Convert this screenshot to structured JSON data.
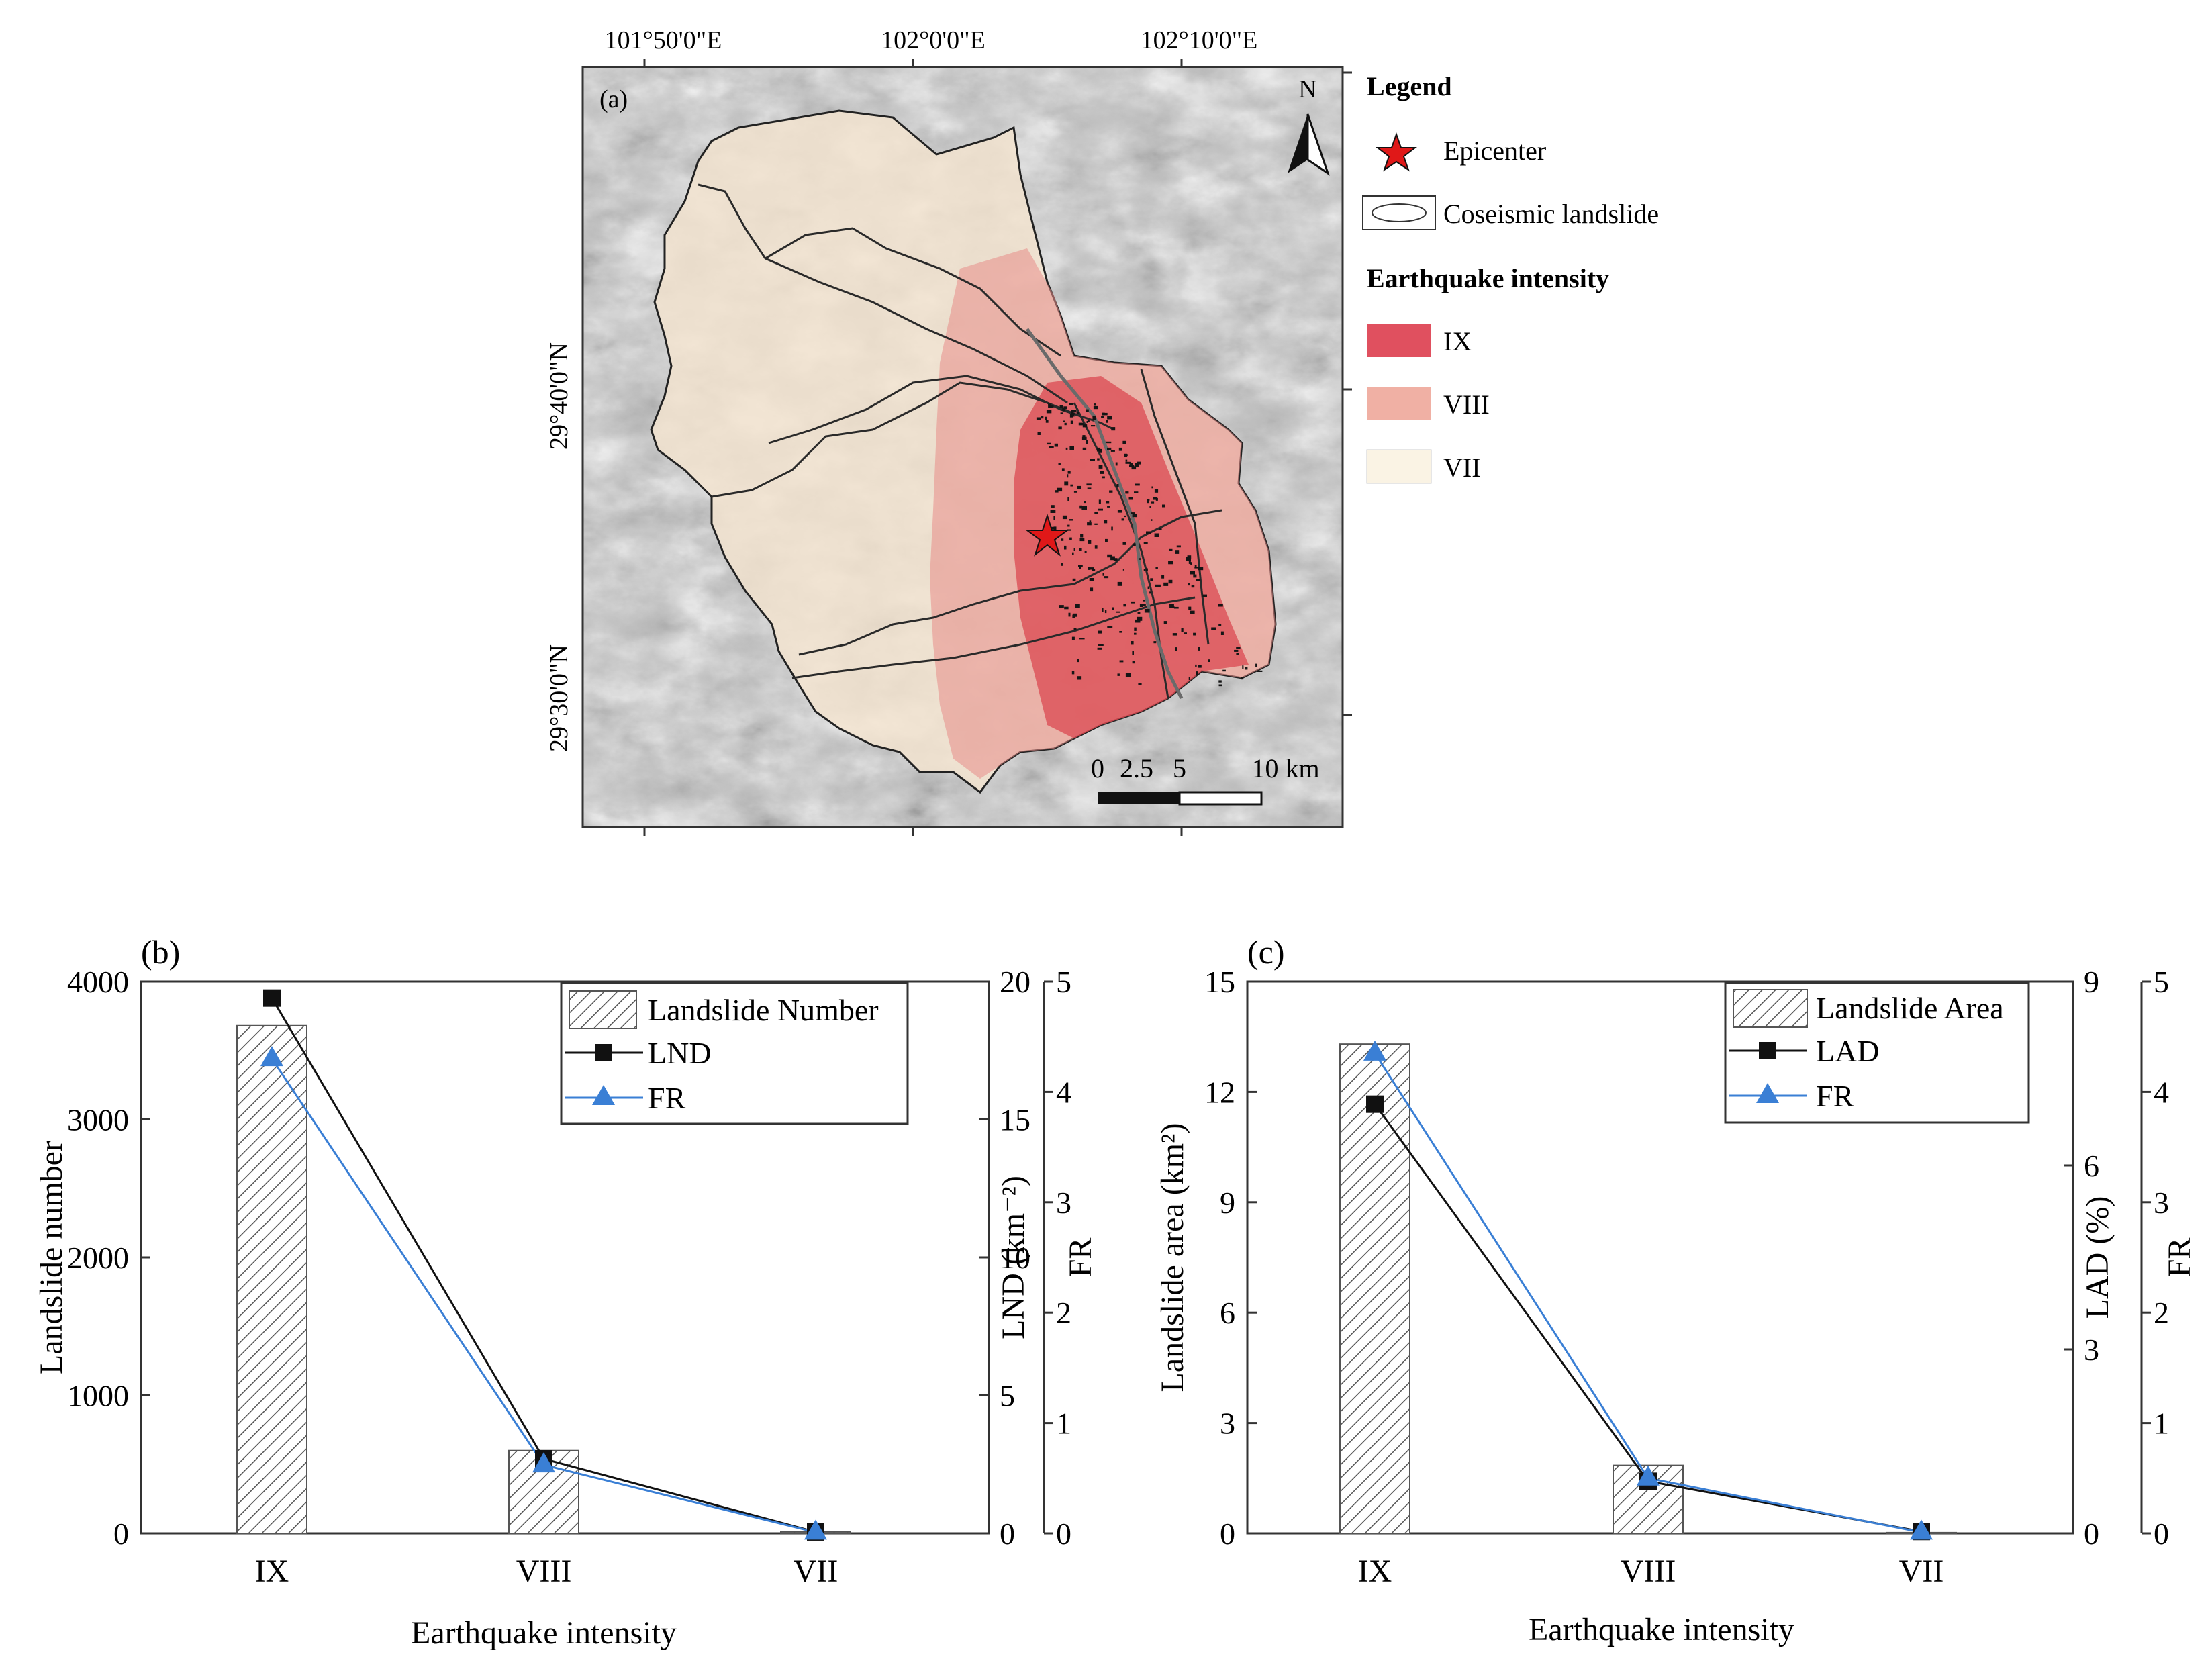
{
  "colors": {
    "intensity_IX": "#e0505f",
    "intensity_VIII": "#f0b0a4",
    "intensity_VII": "#faf3e4",
    "hillshade": "#b8b8b8",
    "bar_hatch": "#555555",
    "series_black": "#111111",
    "series_blue": "#3a7fd5",
    "epicenter": "#e01818"
  },
  "map": {
    "panel_label": "(a)",
    "lon_ticks": [
      "101°50'0\"E",
      "102°0'0\"E",
      "102°10'0\"E"
    ],
    "lat_ticks": [
      "29°40'0\"N",
      "29°30'0\"N"
    ],
    "north_label": "N",
    "scale_labels": [
      "0",
      "2.5",
      "5",
      "10 km"
    ],
    "legend": {
      "title": "Legend",
      "epicenter": "Epicenter",
      "landslide": "Coseismic landslide",
      "intensity_title": "Earthquake intensity",
      "classes": [
        "IX",
        "VIII",
        "VII"
      ]
    }
  },
  "chart_data": [
    {
      "type": "bar",
      "panel_label": "(b)",
      "categories": [
        "IX",
        "VIII",
        "VII"
      ],
      "xlabel": "Earthquake intensity",
      "ylabel": "Landslide number",
      "ylim": [
        0,
        4000
      ],
      "yticks": [
        "0",
        "1000",
        "2000",
        "3000",
        "4000"
      ],
      "y2label": "LND (km⁻²)",
      "y2lim": [
        0,
        20
      ],
      "y2ticks": [
        "0",
        "5",
        "10",
        "15",
        "20"
      ],
      "y3label": "FR",
      "y3lim": [
        0,
        5
      ],
      "y3ticks": [
        "0",
        "1",
        "2",
        "3",
        "4",
        "5"
      ],
      "legend_position": "top-right",
      "series": [
        {
          "name": "Landslide Number",
          "kind": "bar",
          "axis": "y",
          "values": [
            3680,
            600,
            10
          ]
        },
        {
          "name": "LND",
          "kind": "line",
          "marker": "square",
          "axis": "y2",
          "values": [
            19.4,
            2.7,
            0.05
          ]
        },
        {
          "name": "FR",
          "kind": "line",
          "marker": "triangle",
          "axis": "y3",
          "values": [
            4.3,
            0.62,
            0.01
          ]
        }
      ]
    },
    {
      "type": "bar",
      "panel_label": "(c)",
      "categories": [
        "IX",
        "VIII",
        "VII"
      ],
      "xlabel": "Earthquake intensity",
      "ylabel": "Landslide area (km²)",
      "ylim": [
        0,
        15
      ],
      "yticks": [
        "0",
        "3",
        "6",
        "9",
        "12",
        "15"
      ],
      "y2label": "LAD (%)",
      "y2lim": [
        0,
        9
      ],
      "y2ticks": [
        "0",
        "3",
        "6",
        "9"
      ],
      "y3label": "FR",
      "y3lim": [
        0,
        5
      ],
      "y3ticks": [
        "0",
        "1",
        "2",
        "3",
        "4",
        "5"
      ],
      "legend_position": "top-right",
      "series": [
        {
          "name": "Landslide Area",
          "kind": "bar",
          "axis": "y",
          "values": [
            13.3,
            1.85,
            0.02
          ]
        },
        {
          "name": "LAD",
          "kind": "line",
          "marker": "square",
          "axis": "y2",
          "values": [
            7.0,
            0.85,
            0.03
          ]
        },
        {
          "name": "FR",
          "kind": "line",
          "marker": "triangle",
          "axis": "y3",
          "values": [
            4.35,
            0.5,
            0.01
          ]
        }
      ]
    }
  ]
}
